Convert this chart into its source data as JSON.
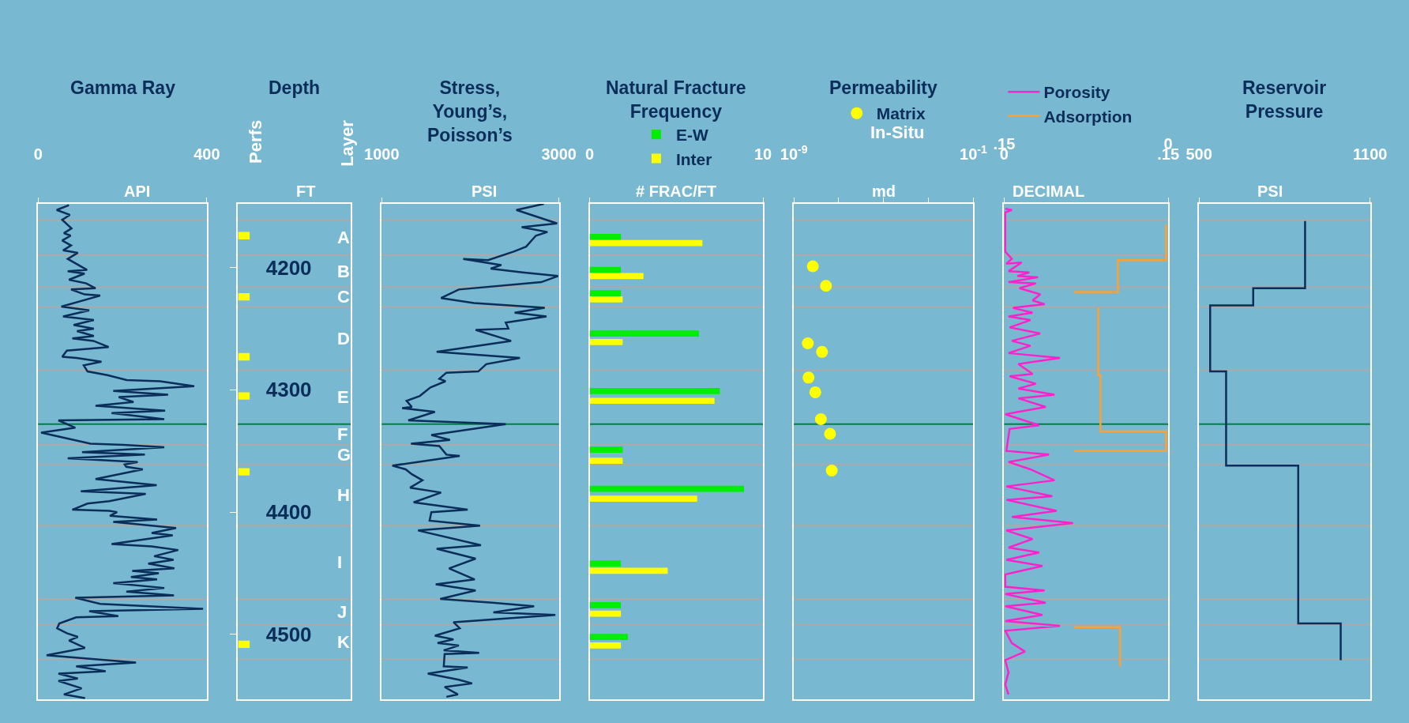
{
  "chart_data": [
    {
      "type": "line",
      "title": "Gamma Ray",
      "xlabel": "API",
      "orientation": "horizontal",
      "xlim": [
        0,
        400
      ],
      "xticks": [
        0,
        400
      ],
      "ref_lines": [
        {
          "axis": "y",
          "value": 4161,
          "color": "#aaaaaa"
        },
        {
          "axis": "y",
          "value": 4190,
          "color": "#aaaaaa"
        },
        {
          "axis": "y",
          "value": 4216,
          "color": "#aaaaaa"
        },
        {
          "axis": "y",
          "value": 4232,
          "color": "#aaaaaa"
        },
        {
          "axis": "y",
          "value": 4284,
          "color": "#aaaaaa"
        },
        {
          "axis": "y",
          "value": 4328,
          "color": "#0a7a50"
        },
        {
          "axis": "y",
          "value": 4345,
          "color": "#aaaaaa"
        },
        {
          "axis": "y",
          "value": 4361,
          "color": "#aaaaaa"
        },
        {
          "axis": "y",
          "value": 4411,
          "color": "#aaaaaa"
        },
        {
          "axis": "y",
          "value": 4471,
          "color": "#aaaaaa"
        },
        {
          "axis": "y",
          "value": 4492,
          "color": "#aaaaaa"
        },
        {
          "axis": "y",
          "value": 4520,
          "color": "#aaaaaa"
        }
      ],
      "ylim": [
        4553,
        4148
      ],
      "tick_labels": "x",
      "series": [
        {
          "color": "#0b2d5a",
          "x": [
            4149,
            4153,
            4157,
            4161,
            4168,
            4172,
            4174,
            4178,
            4182,
            4186,
            4188,
            4193,
            4202,
            4203,
            4205,
            4210,
            4213,
            4217,
            4218,
            4222,
            4223,
            4232,
            4235,
            4240,
            4243,
            4247,
            4250,
            4252,
            4256,
            4258,
            4260,
            4265,
            4268,
            4273,
            4274,
            4277,
            4280,
            4285,
            4288,
            4292,
            4293,
            4297,
            4301,
            4304,
            4306,
            4310,
            4313,
            4317,
            4319,
            4324,
            4325,
            4331,
            4335,
            4344,
            4345,
            4347,
            4351,
            4353,
            4356,
            4359,
            4361,
            4363,
            4365,
            4373,
            4378,
            4383,
            4385,
            4391,
            4393,
            4398,
            4399,
            4400,
            4403,
            4406,
            4408,
            4413,
            4417,
            4419,
            4426,
            4428,
            4431,
            4436,
            4439,
            4442,
            4446,
            4448,
            4450,
            4453,
            4455,
            4458,
            4462,
            4465,
            4468,
            4470,
            4475,
            4479,
            4481,
            4485,
            4486,
            4491,
            4495,
            4499,
            4502,
            4505,
            4511,
            4517,
            4523,
            4526,
            4530,
            4532,
            4536,
            4538,
            4544,
            4549,
            4552
          ],
          "values": [
            73,
            44,
            75,
            57,
            79,
            61,
            77,
            57,
            78,
            59,
            94,
            70,
            116,
            70,
            110,
            73,
            114,
            136,
            78,
            110,
            147,
            55,
            121,
            59,
            132,
            84,
            132,
            92,
            132,
            81,
            131,
            167,
            68,
            57,
            91,
            150,
            108,
            117,
            164,
            210,
            289,
            370,
            178,
            308,
            191,
            226,
            136,
            301,
            174,
            299,
            48,
            88,
            7,
            124,
            203,
            299,
            104,
            253,
            70,
            236,
            205,
            209,
            248,
            136,
            281,
            101,
            255,
            169,
            117,
            81,
            169,
            187,
            170,
            282,
            178,
            327,
            269,
            319,
            174,
            269,
            332,
            275,
            321,
            261,
            323,
            223,
            286,
            220,
            282,
            178,
            299,
            209,
            322,
            88,
            147,
            391,
            121,
            190,
            90,
            50,
            45,
            68,
            94,
            73,
            111,
            20,
            232,
            90,
            160,
            48,
            94,
            48,
            103,
            61,
            111
          ]
        }
      ]
    },
    {
      "type": "bar",
      "title": "Depth",
      "xlabel": "FT",
      "categories": [
        "Perfs"
      ],
      "ylim": [
        4553,
        4148
      ],
      "yticks": [
        4200,
        4300,
        4400,
        4500
      ],
      "series": [
        {
          "color": "#ffff00",
          "values": [
            6
          ],
          "base": [
            4171
          ]
        },
        {
          "color": "#ffff00",
          "values": [
            6
          ],
          "base": [
            4221
          ]
        },
        {
          "color": "#ffff00",
          "values": [
            6
          ],
          "base": [
            4270
          ]
        },
        {
          "color": "#ffff00",
          "values": [
            6
          ],
          "base": [
            4302
          ]
        },
        {
          "color": "#ffff00",
          "values": [
            6
          ],
          "base": [
            4364
          ]
        },
        {
          "color": "#ffff00",
          "values": [
            6
          ],
          "base": [
            4505
          ]
        }
      ],
      "ylabel": "Layer",
      "annotations": [
        "A",
        "B",
        "C",
        "D",
        "E",
        "F",
        "G",
        "H",
        "I",
        "J",
        "K"
      ],
      "ref_lines": [
        {
          "axis": "y",
          "value": 4161,
          "color": "#aaaaaa"
        },
        {
          "axis": "y",
          "value": 4190,
          "color": "#aaaaaa"
        },
        {
          "axis": "y",
          "value": 4216,
          "color": "#aaaaaa"
        },
        {
          "axis": "y",
          "value": 4232,
          "color": "#aaaaaa"
        },
        {
          "axis": "y",
          "value": 4284,
          "color": "#aaaaaa"
        },
        {
          "axis": "y",
          "value": 4328,
          "color": "#0a7a50"
        },
        {
          "axis": "y",
          "value": 4345,
          "color": "#aaaaaa"
        },
        {
          "axis": "y",
          "value": 4361,
          "color": "#aaaaaa"
        },
        {
          "axis": "y",
          "value": 4411,
          "color": "#aaaaaa"
        },
        {
          "axis": "y",
          "value": 4471,
          "color": "#aaaaaa"
        },
        {
          "axis": "y",
          "value": 4492,
          "color": "#aaaaaa"
        },
        {
          "axis": "y",
          "value": 4520,
          "color": "#aaaaaa"
        }
      ]
    },
    {
      "type": "line",
      "title": "Stress,\nYoung’s,\nPoisson’s",
      "xlabel": "PSI",
      "orientation": "horizontal",
      "xlim": [
        1000,
        3000
      ],
      "xticks": [
        1000,
        3000
      ],
      "ref_lines": [
        {
          "axis": "y",
          "value": 4161,
          "color": "#aaaaaa"
        },
        {
          "axis": "y",
          "value": 4190,
          "color": "#aaaaaa"
        },
        {
          "axis": "y",
          "value": 4216,
          "color": "#aaaaaa"
        },
        {
          "axis": "y",
          "value": 4232,
          "color": "#aaaaaa"
        },
        {
          "axis": "y",
          "value": 4284,
          "color": "#aaaaaa"
        },
        {
          "axis": "y",
          "value": 4328,
          "color": "#0a7a50"
        },
        {
          "axis": "y",
          "value": 4345,
          "color": "#aaaaaa"
        },
        {
          "axis": "y",
          "value": 4361,
          "color": "#aaaaaa"
        },
        {
          "axis": "y",
          "value": 4411,
          "color": "#aaaaaa"
        },
        {
          "axis": "y",
          "value": 4471,
          "color": "#aaaaaa"
        },
        {
          "axis": "y",
          "value": 4492,
          "color": "#aaaaaa"
        },
        {
          "axis": "y",
          "value": 4520,
          "color": "#aaaaaa"
        }
      ],
      "ylim": [
        4553,
        4148
      ],
      "tick_labels": "x",
      "series": [
        {
          "color": "#0b2d5a",
          "x": [
            4148,
            4153,
            4164,
            4167,
            4171,
            4174,
            4183,
            4187,
            4194,
            4193,
            4198,
            4201,
            4204,
            4207,
            4212,
            4218,
            4225,
            4229,
            4233,
            4237,
            4240,
            4245,
            4250,
            4251,
            4260,
            4269,
            4274,
            4279,
            4285,
            4286,
            4291,
            4293,
            4298,
            4305,
            4309,
            4314,
            4315,
            4318,
            4325,
            4328,
            4337,
            4341,
            4344,
            4346,
            4353,
            4354,
            4362,
            4365,
            4369,
            4374,
            4380,
            4384,
            4392,
            4398,
            4400,
            4407,
            4411,
            4415,
            4427,
            4430,
            4438,
            4446,
            4455,
            4459,
            4464,
            4471,
            4474,
            4477,
            4482,
            4484,
            4490,
            4495,
            4501,
            4504,
            4507,
            4509,
            4513,
            4515,
            4516,
            4526,
            4527,
            4532,
            4537,
            4540,
            4543,
            4549,
            4551
          ],
          "values": [
            2830,
            2520,
            2980,
            2580,
            2870,
            2740,
            2630,
            2490,
            2200,
            1920,
            2350,
            2230,
            2590,
            2990,
            2800,
            1870,
            1670,
            2040,
            2840,
            2500,
            2860,
            2400,
            2430,
            2060,
            2460,
            1620,
            2560,
            2180,
            2090,
            1730,
            1650,
            1720,
            1550,
            1430,
            1280,
            1340,
            1230,
            1600,
            1300,
            2400,
            1560,
            1770,
            1330,
            1650,
            1730,
            1880,
            1120,
            1270,
            1340,
            1460,
            1320,
            1670,
            1360,
            1970,
            1560,
            1540,
            2110,
            1410,
            2120,
            1620,
            2060,
            1760,
            2050,
            1610,
            2060,
            1660,
            2250,
            2720,
            2260,
            2960,
            1810,
            1880,
            1600,
            1810,
            1630,
            1870,
            1700,
            2100,
            1710,
            1700,
            1970,
            1520,
            1870,
            2020,
            1710,
            1860,
            1730
          ]
        }
      ]
    },
    {
      "type": "bar",
      "title": "Natural Fracture\nFrequency",
      "xlabel": "# FRAC/FT",
      "orientation": "horizontal",
      "xlim": [
        0,
        10
      ],
      "xticks": [
        0,
        10
      ],
      "ref_lines": [
        {
          "axis": "y",
          "value": 4161,
          "color": "#aaaaaa"
        },
        {
          "axis": "y",
          "value": 4190,
          "color": "#aaaaaa"
        },
        {
          "axis": "y",
          "value": 4216,
          "color": "#aaaaaa"
        },
        {
          "axis": "y",
          "value": 4232,
          "color": "#aaaaaa"
        },
        {
          "axis": "y",
          "value": 4284,
          "color": "#aaaaaa"
        },
        {
          "axis": "y",
          "value": 4328,
          "color": "#0a7a50"
        },
        {
          "axis": "y",
          "value": 4345,
          "color": "#aaaaaa"
        },
        {
          "axis": "y",
          "value": 4361,
          "color": "#aaaaaa"
        },
        {
          "axis": "y",
          "value": 4411,
          "color": "#aaaaaa"
        },
        {
          "axis": "y",
          "value": 4471,
          "color": "#aaaaaa"
        },
        {
          "axis": "y",
          "value": 4492,
          "color": "#aaaaaa"
        },
        {
          "axis": "y",
          "value": 4520,
          "color": "#aaaaaa"
        }
      ],
      "ylim": [
        4553,
        4148
      ],
      "tick_labels": "x",
      "legend": "top",
      "series": [
        {
          "name": "E-W",
          "color": "#00ee00",
          "x": [
            4175,
            4202,
            4221,
            4254,
            4301,
            4349,
            4381,
            4442,
            4476,
            4502
          ],
          "values": [
            1.8,
            1.8,
            1.8,
            6.3,
            7.5,
            1.9,
            8.9,
            1.8,
            1.8,
            2.2
          ]
        },
        {
          "name": "Inter",
          "color": "#ffff00",
          "x": [
            4180,
            4207,
            4226,
            4261,
            4309,
            4358,
            4389,
            4448,
            4483,
            4509
          ],
          "values": [
            6.5,
            3.1,
            1.9,
            1.9,
            7.2,
            1.9,
            6.2,
            4.5,
            1.8,
            1.8
          ]
        }
      ]
    },
    {
      "type": "scatter",
      "title": "Permeability",
      "subtitle": "In-Situ",
      "xlabel": "md",
      "log": "x",
      "marker": "circle",
      "xlim": [
        1e-09,
        0.1
      ],
      "xticks": [
        {
          "value": 1e-09,
          "label": "10$^{-9}$"
        },
        {
          "value": 1e-07,
          "label": null
        },
        {
          "value": 1e-05,
          "label": null
        },
        {
          "value": 0.001,
          "label": null
        },
        {
          "value": 0.1,
          "label": "10$^{-1}$"
        }
      ],
      "ref_lines": [
        {
          "axis": "y",
          "value": 4161,
          "color": "#aaaaaa"
        },
        {
          "axis": "y",
          "value": 4190,
          "color": "#aaaaaa"
        },
        {
          "axis": "y",
          "value": 4216,
          "color": "#aaaaaa"
        },
        {
          "axis": "y",
          "value": 4232,
          "color": "#aaaaaa"
        },
        {
          "axis": "y",
          "value": 4284,
          "color": "#aaaaaa"
        },
        {
          "axis": "y",
          "value": 4328,
          "color": "#0a7a50"
        },
        {
          "axis": "y",
          "value": 4345,
          "color": "#aaaaaa"
        },
        {
          "axis": "y",
          "value": 4361,
          "color": "#aaaaaa"
        },
        {
          "axis": "y",
          "value": 4411,
          "color": "#aaaaaa"
        },
        {
          "axis": "y",
          "value": 4471,
          "color": "#aaaaaa"
        },
        {
          "axis": "y",
          "value": 4492,
          "color": "#aaaaaa"
        },
        {
          "axis": "y",
          "value": 4520,
          "color": "#aaaaaa"
        }
      ],
      "orientation": "horizontal",
      "ylim": [
        4553,
        4148
      ],
      "tick_labels": "x",
      "legend": "top",
      "series": [
        {
          "name": "Matrix",
          "color": "#ffff00",
          "x": [
            4199,
            4215,
            4262,
            4269,
            4290,
            4302,
            4324,
            4336,
            4366
          ],
          "values": [
            7e-09,
            2.7e-08,
            4.2e-09,
            1.8e-08,
            4.5e-09,
            9e-09,
            1.6e-08,
            4.1e-08,
            4.9e-08
          ]
        }
      ]
    },
    {
      "type": "line",
      "xlabel": "DECIMAL",
      "orientation": "horizontal",
      "xlim": [
        0,
        0.15
      ],
      "xticks": [
        0,
        {
          "value": 0.15,
          "label": ".15"
        }
      ],
      "x2lim": [
        0.15,
        0
      ],
      "x2ticks": [
        {
          "value": 0.15,
          "label": ".15"
        },
        0
      ],
      "ref_lines": [
        {
          "axis": "y",
          "value": 4161,
          "color": "#aaaaaa"
        },
        {
          "axis": "y",
          "value": 4190,
          "color": "#aaaaaa"
        },
        {
          "axis": "y",
          "value": 4216,
          "color": "#aaaaaa"
        },
        {
          "axis": "y",
          "value": 4232,
          "color": "#aaaaaa"
        },
        {
          "axis": "y",
          "value": 4284,
          "color": "#aaaaaa"
        },
        {
          "axis": "y",
          "value": 4328,
          "color": "#0a7a50"
        },
        {
          "axis": "y",
          "value": 4345,
          "color": "#aaaaaa"
        },
        {
          "axis": "y",
          "value": 4361,
          "color": "#aaaaaa"
        },
        {
          "axis": "y",
          "value": 4411,
          "color": "#aaaaaa"
        },
        {
          "axis": "y",
          "value": 4471,
          "color": "#aaaaaa"
        },
        {
          "axis": "y",
          "value": 4492,
          "color": "#aaaaaa"
        },
        {
          "axis": "y",
          "value": 4520,
          "color": "#aaaaaa"
        }
      ],
      "ylim": [
        4553,
        4148
      ],
      "tick_labels": "x",
      "legend": "top left",
      "series": [
        {
          "name": "Porosity",
          "color": "#ff22cc",
          "x": [
            4152,
            4153,
            4155,
            4187,
            4193,
            4197,
            4196,
            4203,
            4204,
            4207,
            4208,
            4212,
            4213,
            4217,
            4222,
            4227,
            4230,
            4233,
            4237,
            4240,
            4243,
            4249,
            4254,
            4260,
            4264,
            4270,
            4274,
            4279,
            4287,
            4289,
            4295,
            4299,
            4304,
            4307,
            4314,
            4320,
            4329,
            4332,
            4350,
            4353,
            4359,
            4365,
            4374,
            4379,
            4387,
            4390,
            4399,
            4404,
            4409,
            4415,
            4422,
            4429,
            4433,
            4439,
            4444,
            4451,
            4461,
            4464,
            4467,
            4474,
            4477,
            4484,
            4489,
            4493,
            4497,
            4507,
            4514,
            4521,
            4531,
            4541,
            4549
          ],
          "values": [
            0.001,
            0.007,
            0.001,
            0.001,
            0.007,
            0.002,
            0.016,
            0.004,
            0.023,
            0.012,
            0.031,
            0.004,
            0.029,
            0.014,
            0.033,
            0.026,
            0.037,
            0.008,
            0.026,
            0.004,
            0.024,
            0.005,
            0.033,
            0.007,
            0.024,
            0.004,
            0.051,
            0.013,
            0.026,
            0.005,
            0.029,
            0.013,
            0.046,
            0.013,
            0.038,
            0.001,
            0.032,
            0.005,
            0.002,
            0.041,
            0.004,
            0.024,
            0.046,
            0.002,
            0.044,
            0.002,
            0.048,
            0.007,
            0.063,
            0.002,
            0.026,
            0.004,
            0.032,
            0.002,
            0.035,
            0.001,
            0.001,
            0.037,
            0.001,
            0.038,
            0.001,
            0.035,
            0.001,
            0.051,
            0.001,
            0.007,
            0.019,
            0.001,
            0.004,
            0.001,
            0.004
          ]
        },
        {
          "name": "Adsorption",
          "color": "#ffa030",
          "axis": "x2",
          "x": [
            4165,
            4194,
            4194,
            4220,
            4220,
            null,
            4233,
            4288,
            4288,
            4334,
            4334,
            4350,
            4350,
            null,
            4494,
            4494,
            4526
          ],
          "values": [
            0.002,
            0.002,
            0.046,
            0.046,
            0.086,
            null,
            0.064,
            0.064,
            0.062,
            0.062,
            0.002,
            0.002,
            0.086,
            null,
            0.086,
            0.044,
            0.044
          ]
        }
      ]
    },
    {
      "type": "line",
      "title": "Reservoir\nPressure",
      "xlabel": "PSI",
      "orientation": "horizontal",
      "xlim": [
        500,
        1100
      ],
      "xticks": [
        500,
        1100
      ],
      "ref_lines": [
        {
          "axis": "y",
          "value": 4161,
          "color": "#aaaaaa"
        },
        {
          "axis": "y",
          "value": 4190,
          "color": "#aaaaaa"
        },
        {
          "axis": "y",
          "value": 4216,
          "color": "#aaaaaa"
        },
        {
          "axis": "y",
          "value": 4232,
          "color": "#aaaaaa"
        },
        {
          "axis": "y",
          "value": 4284,
          "color": "#aaaaaa"
        },
        {
          "axis": "y",
          "value": 4328,
          "color": "#0a7a50"
        },
        {
          "axis": "y",
          "value": 4345,
          "color": "#aaaaaa"
        },
        {
          "axis": "y",
          "value": 4361,
          "color": "#aaaaaa"
        },
        {
          "axis": "y",
          "value": 4411,
          "color": "#aaaaaa"
        },
        {
          "axis": "y",
          "value": 4471,
          "color": "#aaaaaa"
        },
        {
          "axis": "y",
          "value": 4492,
          "color": "#aaaaaa"
        },
        {
          "axis": "y",
          "value": 4520,
          "color": "#aaaaaa"
        }
      ],
      "ylim": [
        4553,
        4148
      ],
      "tick_labels": "x",
      "series": [
        {
          "color": "#0b2d5a",
          "x": [
            4162,
            4217,
            4217,
            4231,
            4231,
            4285,
            4285,
            4362,
            4362,
            4491,
            4491,
            4521
          ],
          "values": [
            872,
            872,
            690,
            690,
            539,
            539,
            595,
            595,
            848,
            848,
            997,
            997
          ]
        }
      ]
    }
  ]
}
